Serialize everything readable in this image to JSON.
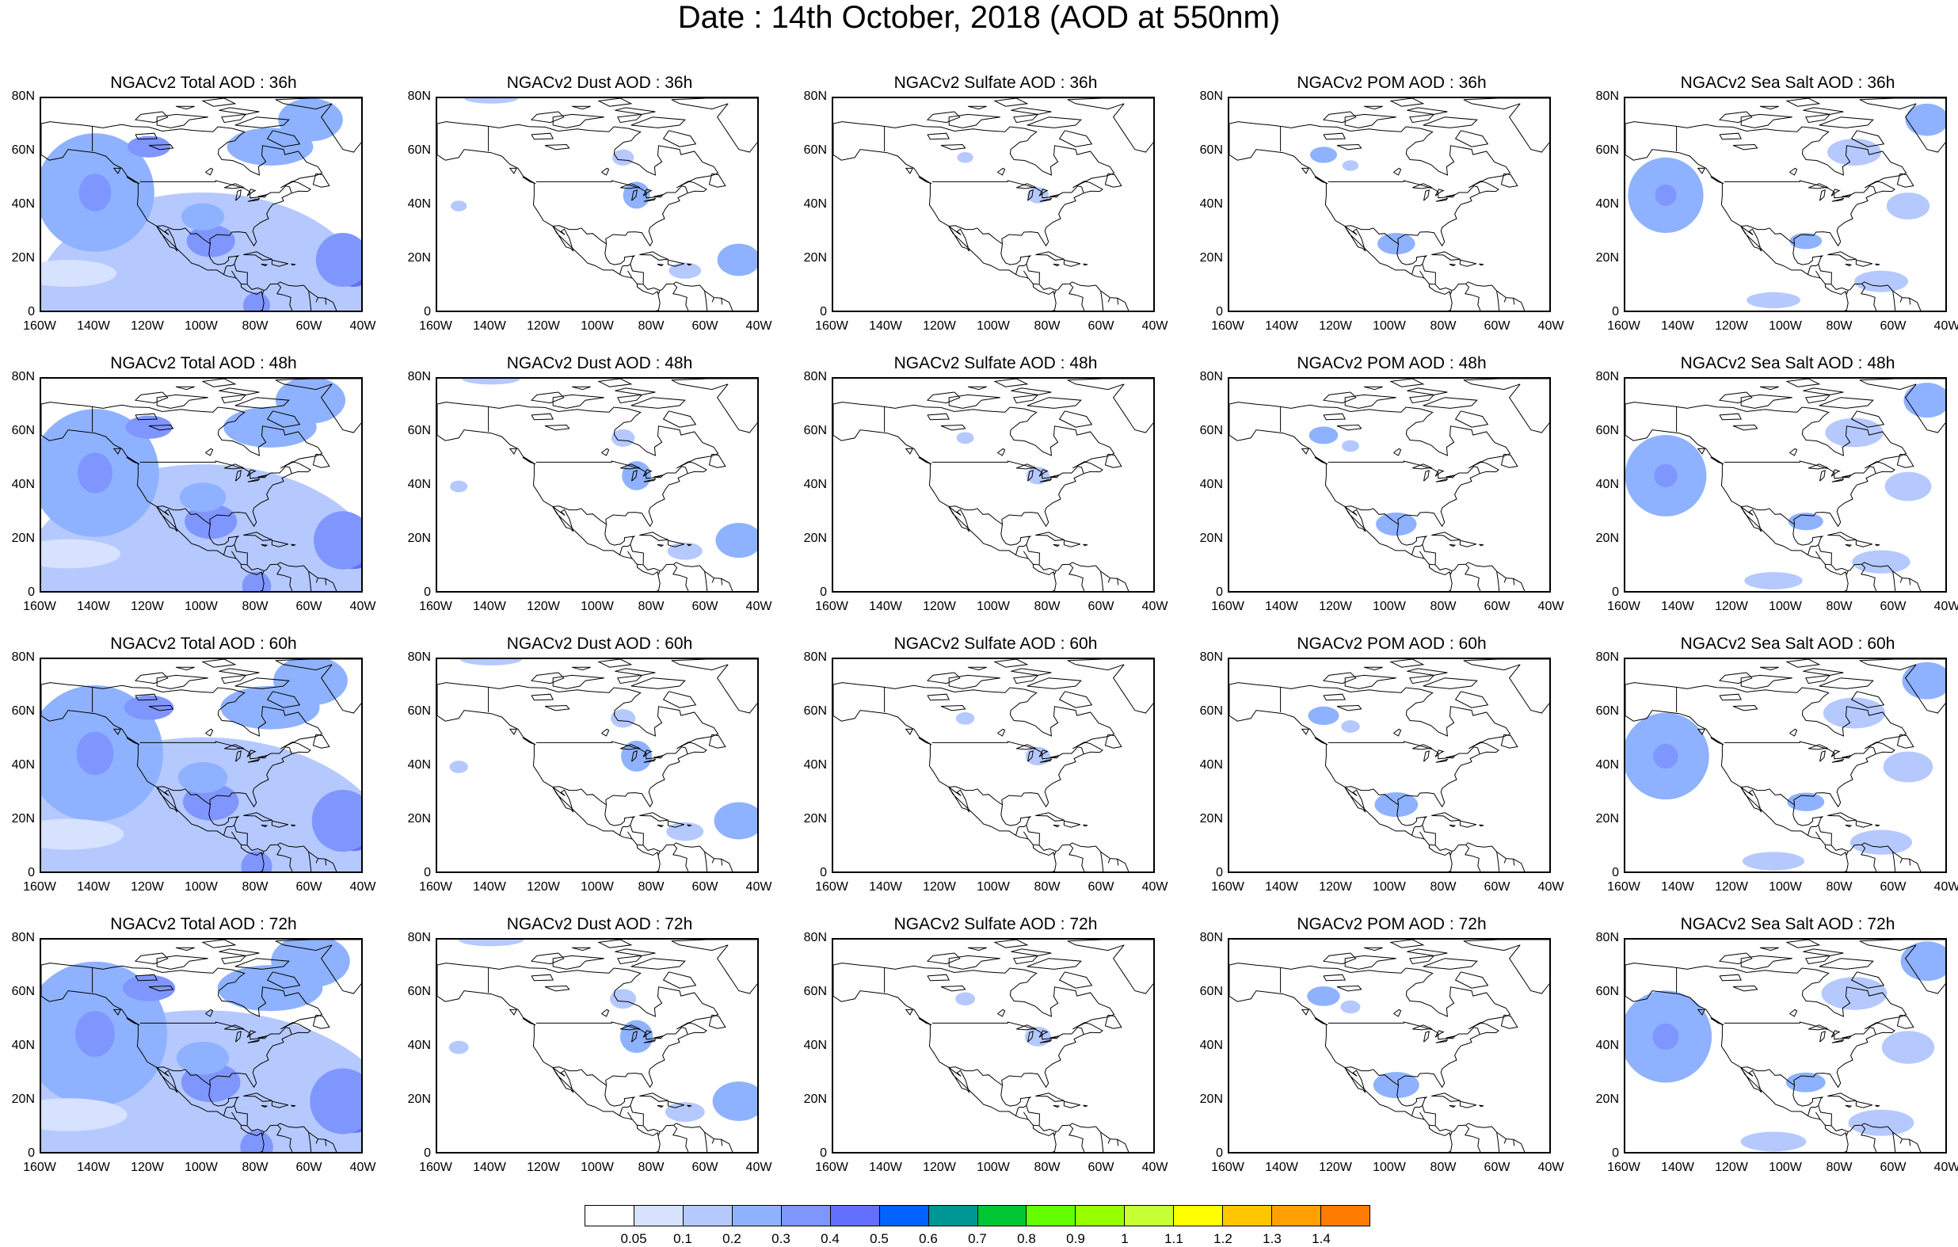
{
  "title": "Date : 14th October, 2018 (AOD at 550nm)",
  "lat_ticks": [
    "80N",
    "60N",
    "40N",
    "20N",
    "0"
  ],
  "lon_ticks": [
    "160W",
    "140W",
    "120W",
    "100W",
    "80W",
    "60W",
    "40W"
  ],
  "panels": [
    [
      {
        "title": "NGACv2 Total AOD : 36h",
        "species": "total"
      },
      {
        "title": "NGACv2 Dust AOD : 36h",
        "species": "dust"
      },
      {
        "title": "NGACv2 Sulfate AOD : 36h",
        "species": "sulfate"
      },
      {
        "title": "NGACv2 POM AOD : 36h",
        "species": "pom"
      },
      {
        "title": "NGACv2 Sea Salt AOD : 36h",
        "species": "seasalt"
      }
    ],
    [
      {
        "title": "NGACv2 Total AOD : 48h",
        "species": "total"
      },
      {
        "title": "NGACv2 Dust AOD : 48h",
        "species": "dust"
      },
      {
        "title": "NGACv2 Sulfate AOD : 48h",
        "species": "sulfate"
      },
      {
        "title": "NGACv2 POM AOD : 48h",
        "species": "pom"
      },
      {
        "title": "NGACv2 Sea Salt AOD : 48h",
        "species": "seasalt"
      }
    ],
    [
      {
        "title": "NGACv2 Total AOD : 60h",
        "species": "total"
      },
      {
        "title": "NGACv2 Dust AOD : 60h",
        "species": "dust"
      },
      {
        "title": "NGACv2 Sulfate AOD : 60h",
        "species": "sulfate"
      },
      {
        "title": "NGACv2 POM AOD : 60h",
        "species": "pom"
      },
      {
        "title": "NGACv2 Sea Salt AOD : 60h",
        "species": "seasalt"
      }
    ],
    [
      {
        "title": "NGACv2 Total AOD : 72h",
        "species": "total"
      },
      {
        "title": "NGACv2 Dust AOD : 72h",
        "species": "dust"
      },
      {
        "title": "NGACv2 Sulfate AOD : 72h",
        "species": "sulfate"
      },
      {
        "title": "NGACv2 POM AOD : 72h",
        "species": "pom"
      },
      {
        "title": "NGACv2 Sea Salt  AOD : 72h",
        "species": "seasalt"
      }
    ]
  ],
  "colorbar": {
    "labels": [
      "0.05",
      "0.1",
      "0.2",
      "0.3",
      "0.4",
      "0.5",
      "0.6",
      "0.7",
      "0.8",
      "0.9",
      "1",
      "1.1",
      "1.2",
      "1.3",
      "1.4"
    ],
    "colors": [
      "#ffffff",
      "#d6e2ff",
      "#b5c9ff",
      "#8eb2ff",
      "#7f96ff",
      "#6370ff",
      "#0063ff",
      "#009696",
      "#00c633",
      "#63ff00",
      "#96ff00",
      "#c6ff33",
      "#ffff00",
      "#ffc600",
      "#ffa000",
      "#ff7c00",
      "#ff1900"
    ]
  }
}
